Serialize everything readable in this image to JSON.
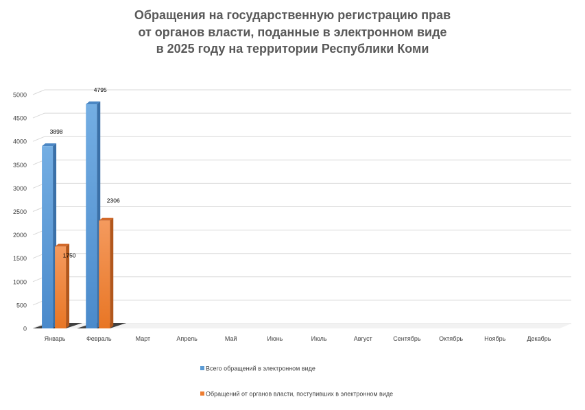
{
  "title_lines": [
    "Обращения на государственную регистрацию прав",
    "от органов власти, поданные в электронном виде",
    "в 2025 году на территории Республики Коми"
  ],
  "colors": {
    "series_0": "#5B9BD5",
    "series_1": "#ED7D31",
    "text": "#595959",
    "grid": "#d9d9d9"
  },
  "chart_data": {
    "type": "bar",
    "title": "Обращения на государственную регистрацию прав от органов власти, поданные в электронном виде в 2025 году на территории Республики Коми",
    "categories": [
      "Январь",
      "Февраль",
      "Март",
      "Апрель",
      "Май",
      "Июнь",
      "Июль",
      "Август",
      "Сентябрь",
      "Октябрь",
      "Ноябрь",
      "Декабрь"
    ],
    "series": [
      {
        "name": "Всего обращений в электронном виде",
        "values": [
          3898,
          4795,
          null,
          null,
          null,
          null,
          null,
          null,
          null,
          null,
          null,
          null
        ]
      },
      {
        "name": "Обращений от органов власти, поступивших в электронном виде",
        "values": [
          1750,
          2306,
          null,
          null,
          null,
          null,
          null,
          null,
          null,
          null,
          null,
          null
        ]
      }
    ],
    "ylim": [
      0,
      5000
    ],
    "yticks": [
      0,
      500,
      1000,
      1500,
      2000,
      2500,
      3000,
      3500,
      4000,
      4500,
      5000
    ],
    "grid": true,
    "legend_position": "bottom",
    "style": "3d-column"
  }
}
